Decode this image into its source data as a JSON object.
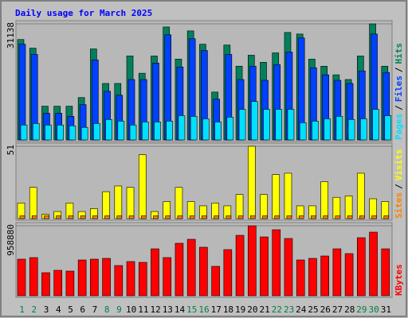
{
  "chart_data": {
    "type": "bar",
    "title": "Daily usage for March 2025",
    "categories": [
      "1",
      "2",
      "3",
      "4",
      "5",
      "6",
      "7",
      "8",
      "9",
      "10",
      "11",
      "12",
      "13",
      "14",
      "15",
      "16",
      "17",
      "18",
      "19",
      "20",
      "21",
      "22",
      "23",
      "24",
      "25",
      "26",
      "27",
      "28",
      "29",
      "30",
      "31"
    ],
    "category_colors": [
      "#008040",
      "#008040",
      "#000000",
      "#000000",
      "#000000",
      "#000000",
      "#000000",
      "#008040",
      "#008040",
      "#000000",
      "#000000",
      "#000000",
      "#000000",
      "#000000",
      "#008040",
      "#008040",
      "#000000",
      "#000000",
      "#000000",
      "#000000",
      "#000000",
      "#008040",
      "#008040",
      "#000000",
      "#000000",
      "#000000",
      "#000000",
      "#000000",
      "#008040",
      "#008040",
      "#000000"
    ],
    "panels": [
      {
        "ylim": [
          0,
          31138
        ],
        "yticks": [
          31138
        ],
        "legend_separator": "/",
        "series": [
          {
            "name": "Hits",
            "color": "#00805C",
            "values": [
              26931,
              24617,
              9047,
              9047,
              9047,
              11362,
              24406,
              15149,
              15149,
              22513,
              17884,
              22513,
              30298,
              21671,
              29246,
              25669,
              12834,
              25458,
              19778,
              22723,
              20830,
              23354,
              28825,
              28404,
              21671,
              19778,
              17463,
              16201,
              22513,
              31138,
              19778
            ]
          },
          {
            "name": "Files",
            "color": "#0040FF",
            "values": [
              25669,
              22934,
              7154,
              7154,
              6312,
              9468,
              21461,
              13045,
              11993,
              16201,
              16201,
              20619,
              28194,
              19567,
              27142,
              23986,
              10941,
              22934,
              16201,
              19778,
              15990,
              20198,
              23565,
              27352,
              19357,
              17463,
              15990,
              15149,
              18515,
              28404,
              18094
            ]
          },
          {
            "name": "Pages",
            "color": "#00E0FF",
            "values": [
              3998,
              4418,
              3998,
              3998,
              3787,
              3366,
              4418,
              5470,
              5050,
              3998,
              4839,
              4839,
              5050,
              6522,
              6312,
              5681,
              4839,
              6102,
              8206,
              10310,
              8206,
              8206,
              8206,
              4629,
              5050,
              5681,
              6312,
              5470,
              5681,
              8206,
              6522
            ]
          }
        ]
      },
      {
        "ylim": [
          0,
          51
        ],
        "yticks": [
          51
        ],
        "legend_separator": "/",
        "series": [
          {
            "name": "Visits",
            "color": "#FFFF00",
            "values": [
              11,
              22,
              3,
              5,
              11,
              5,
              7,
              19,
              23,
              22,
              45,
              5,
              12,
              22,
              12,
              9,
              11,
              9,
              17,
              51,
              17,
              31,
              32,
              9,
              9,
              26,
              15,
              16,
              32,
              14,
              12
            ]
          },
          {
            "name": "Sites",
            "color": "#FF8000",
            "values": [
              2,
              2,
              2,
              2,
              2,
              2,
              2,
              2,
              2,
              2,
              2,
              2,
              2,
              2,
              2,
              2,
              2,
              2,
              2,
              2,
              2,
              2,
              2,
              2,
              2,
              2,
              2,
              2,
              2,
              2,
              2
            ]
          }
        ]
      },
      {
        "ylim": [
          0,
          958880
        ],
        "yticks": [
          958880
        ],
        "series": [
          {
            "name": "KBytes",
            "color": "#FF0000",
            "values": [
              501236,
              523027,
              315996,
              348685,
              337788,
              490338,
              501236,
              512131,
              414062,
              468545,
              457649,
              642888,
              523027,
              719160,
              773642,
              664680,
              403166,
              631993,
              828124,
              958880,
              806331,
              904401,
              784541,
              490338,
              512131,
              544818,
              642888,
              577509,
              795436,
              871709,
              642888
            ]
          }
        ]
      }
    ]
  }
}
